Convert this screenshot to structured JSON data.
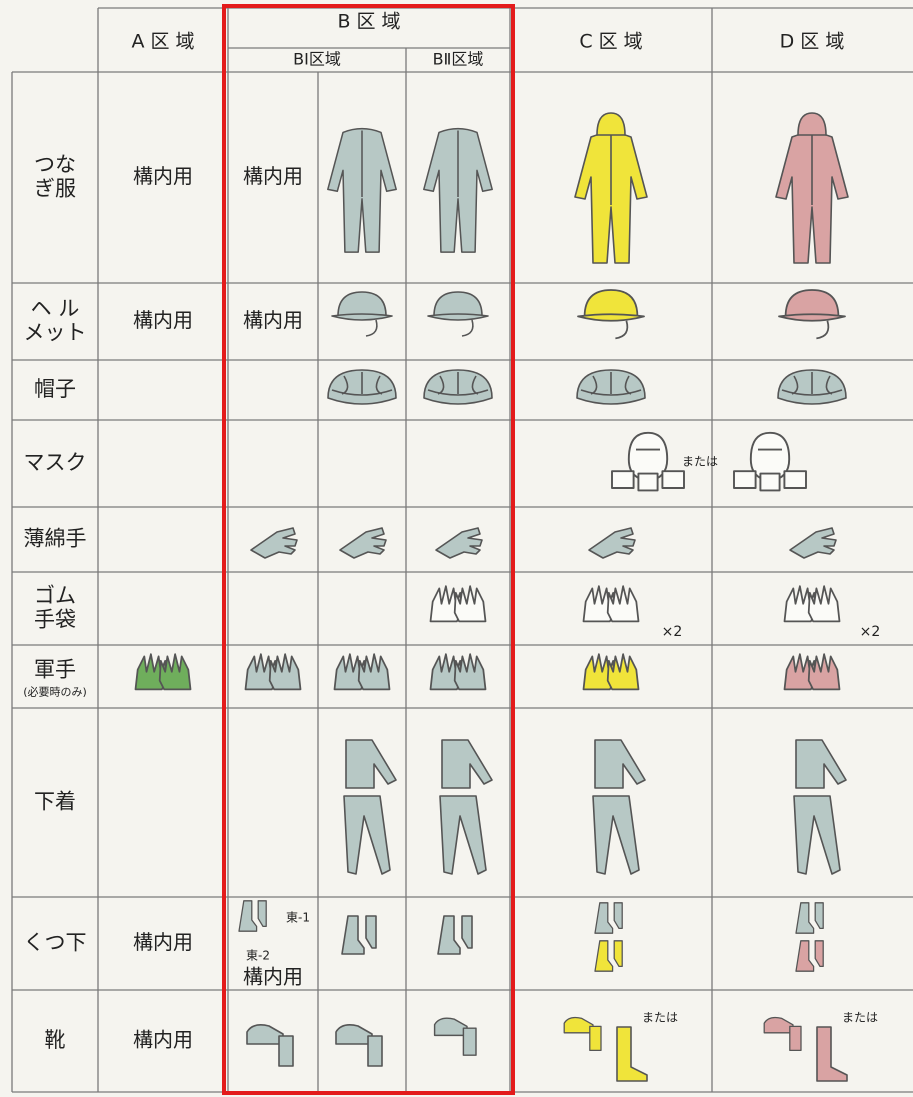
{
  "header": {
    "a": "A 区 域",
    "b": "B 区 域",
    "b1": "BⅠ区域",
    "b2": "BⅡ区域",
    "c": "C 区 域",
    "d": "D 区 域"
  },
  "rows": [
    {
      "label": [
        "つな",
        "ぎ服"
      ],
      "a": "構内用",
      "b1": "構内用"
    },
    {
      "label": [
        "ヘ ル",
        "メット"
      ],
      "a": "構内用",
      "b1": "構内用"
    },
    {
      "label": [
        "帽子"
      ]
    },
    {
      "label": [
        "マスク"
      ],
      "cd": "または"
    },
    {
      "label": [
        "薄綿手"
      ]
    },
    {
      "label": [
        "ゴム",
        "手袋"
      ],
      "c": "×2",
      "d": "×2"
    },
    {
      "label": [
        "軍手"
      ],
      "note": "(必要時のみ)"
    },
    {
      "label": [
        "下着"
      ]
    },
    {
      "label": [
        "くつ下"
      ],
      "a": "構内用",
      "b1_notes": [
        "東-1",
        "東-2",
        "構内用"
      ]
    },
    {
      "label": [
        "靴"
      ],
      "a": "構内用",
      "c": "または",
      "d": "または"
    }
  ]
}
